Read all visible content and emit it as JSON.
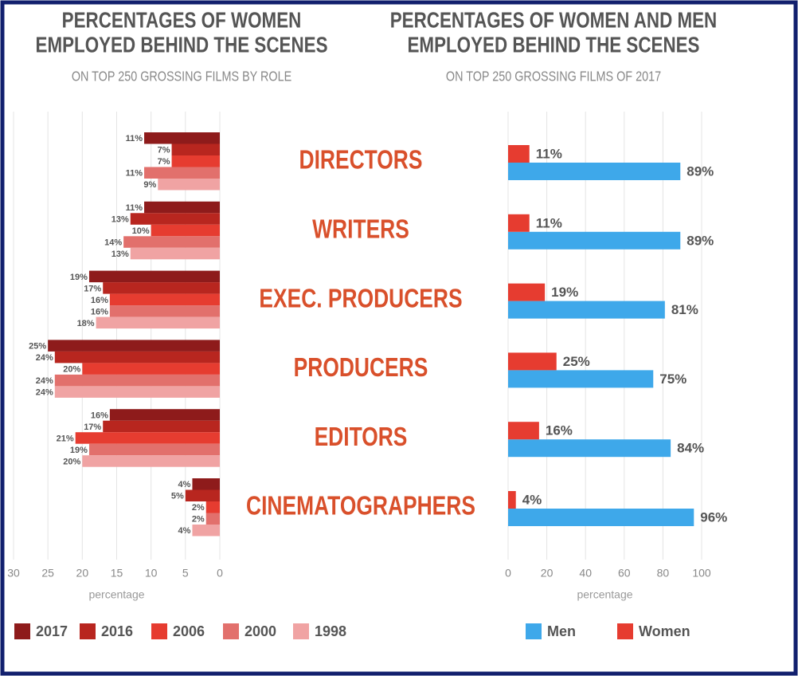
{
  "chart_data": [
    {
      "type": "bar",
      "orientation": "horizontal",
      "title": [
        "PERCENTAGES OF WOMEN",
        "EMPLOYED BEHIND THE SCENES"
      ],
      "subtitle": "ON TOP 250 GROSSING FILMS BY ROLE",
      "categories": [
        "DIRECTORS",
        "WRITERS",
        "EXEC. PRODUCERS",
        "PRODUCERS",
        "EDITORS",
        "CINEMATOGRAPHERS"
      ],
      "series": [
        {
          "name": "2017",
          "color": "#8e1b1b",
          "values": [
            11,
            11,
            19,
            25,
            16,
            4
          ],
          "value_labels": [
            "11%",
            "11%",
            "19%",
            "25%",
            "16%",
            "4%"
          ]
        },
        {
          "name": "2016",
          "color": "#b8261f",
          "values": [
            7,
            13,
            17,
            24,
            17,
            5
          ],
          "value_labels": [
            "7%",
            "13%",
            "17%",
            "24%",
            "17%",
            "5%"
          ]
        },
        {
          "name": "2006",
          "color": "#e63c30",
          "values": [
            7,
            10,
            16,
            20,
            21,
            2
          ],
          "value_labels": [
            "7%",
            "10%",
            "16%",
            "20%",
            "21%",
            "2%"
          ]
        },
        {
          "name": "2000",
          "color": "#e2706c",
          "values": [
            11,
            14,
            16,
            24,
            19,
            2
          ],
          "value_labels": [
            "11%",
            "14%",
            "16%",
            "24%",
            "19%",
            "2%"
          ]
        },
        {
          "name": "1998",
          "color": "#f0a3a3",
          "values": [
            9,
            13,
            18,
            24,
            20,
            4
          ],
          "value_labels": [
            "9%",
            "13%",
            "18%",
            "24%",
            "20%",
            "4%"
          ]
        }
      ],
      "xlim": [
        30,
        0
      ],
      "xticks": [
        30,
        25,
        20,
        15,
        10,
        5,
        0
      ],
      "xlabel": "percentage",
      "grid": true,
      "legend": "bottom"
    },
    {
      "type": "bar",
      "orientation": "horizontal",
      "title": [
        "PERCENTAGES OF WOMEN AND MEN",
        "EMPLOYED BEHIND THE SCENES"
      ],
      "subtitle": "ON TOP 250 GROSSING FILMS OF 2017",
      "series": [
        {
          "name": "Men",
          "color": "#3ea8ea",
          "values": [
            89,
            89,
            81,
            75,
            84,
            96
          ],
          "value_labels": [
            "89%",
            "89%",
            "81%",
            "75%",
            "84%",
            "96%"
          ]
        },
        {
          "name": "Women",
          "color": "#e63c30",
          "values": [
            11,
            11,
            19,
            25,
            16,
            4
          ],
          "value_labels": [
            "11%",
            "11%",
            "19%",
            "25%",
            "16%",
            "4%"
          ]
        }
      ],
      "xlim": [
        0,
        100
      ],
      "xticks": [
        0,
        20,
        40,
        60,
        80,
        100
      ],
      "xlabel": "percentage",
      "grid": true,
      "legend": "bottom"
    }
  ]
}
